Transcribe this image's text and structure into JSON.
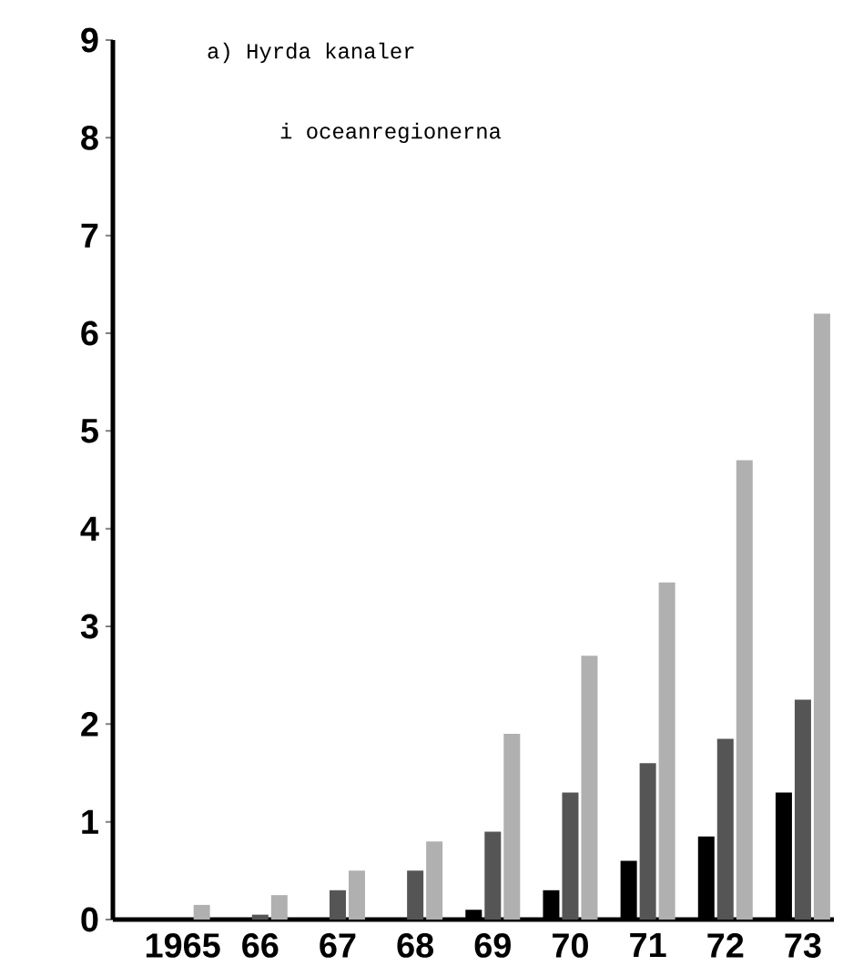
{
  "chart_data": {
    "type": "bar",
    "title": "a) Hyrda kanaler",
    "subtitle": "i oceanregionerna",
    "categories": [
      "1965",
      "66",
      "67",
      "68",
      "69",
      "70",
      "71",
      "72",
      "73"
    ],
    "series": [
      {
        "color": "#000000",
        "values": [
          0,
          0,
          0,
          0,
          0.1,
          0.3,
          0.6,
          0.85,
          1.3
        ]
      },
      {
        "color": "#555555",
        "values": [
          0,
          0.05,
          0.3,
          0.5,
          0.9,
          1.3,
          1.6,
          1.85,
          2.25
        ]
      },
      {
        "color": "#b0b0b0",
        "values": [
          0.15,
          0.25,
          0.5,
          0.8,
          1.9,
          2.7,
          3.45,
          4.7,
          6.2
        ]
      }
    ],
    "ylim": [
      0,
      9
    ],
    "yticks": [
      0,
      1,
      2,
      3,
      4,
      5,
      6,
      7,
      8,
      9
    ]
  }
}
